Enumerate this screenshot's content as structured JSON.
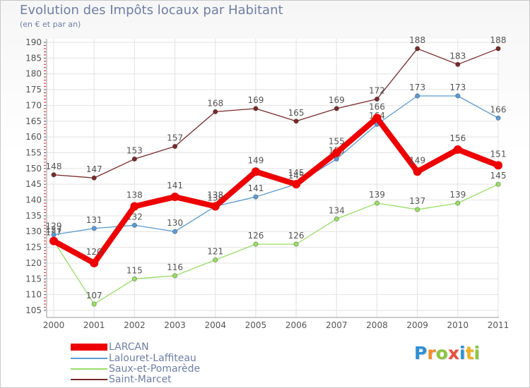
{
  "header": {
    "title": "Evolution des Impôts locaux par Habitant",
    "subtitle": "(en € et par an)"
  },
  "logo": {
    "text": "Proxiti",
    "letters": [
      {
        "ch": "P",
        "color": "#2d8fd6"
      },
      {
        "ch": "r",
        "color": "#f28c28"
      },
      {
        "ch": "o",
        "color": "#8cc63f"
      },
      {
        "ch": "x",
        "color": "#e94e3c"
      },
      {
        "ch": "i",
        "color": "#2d8fd6"
      },
      {
        "ch": "t",
        "color": "#f2b01e"
      },
      {
        "ch": "i",
        "color": "#8cc63f"
      }
    ]
  },
  "chart_data": {
    "type": "line",
    "title": "Evolution des Impôts locaux par Habitant",
    "subtitle": "(en € et par an)",
    "xlabel": "",
    "ylabel": "",
    "categories": [
      "2000",
      "2001",
      "2002",
      "2003",
      "2004",
      "2005",
      "2006",
      "2007",
      "2008",
      "2009",
      "2010",
      "2011"
    ],
    "ylim": [
      105,
      190
    ],
    "yticks": [
      "105",
      "110",
      "115",
      "120",
      "125",
      "130",
      "135",
      "140",
      "145",
      "150",
      "155",
      "160",
      "165",
      "170",
      "175",
      "180",
      "185",
      "190"
    ],
    "grid": true,
    "legend_position": "bottom-left",
    "series": [
      {
        "name": "Saint-Marcet",
        "color": "#7a2a2a",
        "values": [
          148,
          147,
          153,
          157,
          168,
          169,
          165,
          169,
          172,
          188,
          183,
          188
        ],
        "labels": [
          "148",
          "147",
          "153",
          "157",
          "168",
          "169",
          "165",
          "169",
          "172",
          "188",
          "183",
          "188"
        ]
      },
      {
        "name": "Saux-et-Pomarède",
        "color": "#99dd66",
        "values": [
          127,
          107,
          115,
          116,
          121,
          126,
          126,
          134,
          139,
          137,
          139,
          145
        ],
        "labels": [
          "127",
          "107",
          "115",
          "116",
          "121",
          "126",
          "126",
          "134",
          "139",
          "137",
          "139",
          "145"
        ]
      },
      {
        "name": "Lalouret-Laffiteau",
        "color": "#5a9bd5",
        "values": [
          129,
          131,
          132,
          130,
          138,
          141,
          145,
          153,
          164,
          173,
          173,
          166
        ],
        "labels": [
          "129",
          "131",
          "132",
          "130",
          "138",
          "141",
          "145",
          "153",
          "164",
          "173",
          "173",
          "166"
        ]
      },
      {
        "name": "LARCAN",
        "color": "#ee0000",
        "values": [
          127,
          120,
          138,
          141,
          138,
          149,
          145,
          155,
          166,
          149,
          156,
          151
        ],
        "labels": [
          "127",
          "120",
          "138",
          "141",
          "138",
          "149",
          "145",
          "155",
          "166",
          "149",
          "156",
          "151"
        ]
      }
    ]
  },
  "legend": {
    "items": [
      {
        "name": "LARCAN",
        "color": "#ee0000"
      },
      {
        "name": "Lalouret-Laffiteau",
        "color": "#5a9bd5"
      },
      {
        "name": "Saux-et-Pomarède",
        "color": "#99dd66"
      },
      {
        "name": "Saint-Marcet",
        "color": "#7a2a2a"
      }
    ]
  }
}
